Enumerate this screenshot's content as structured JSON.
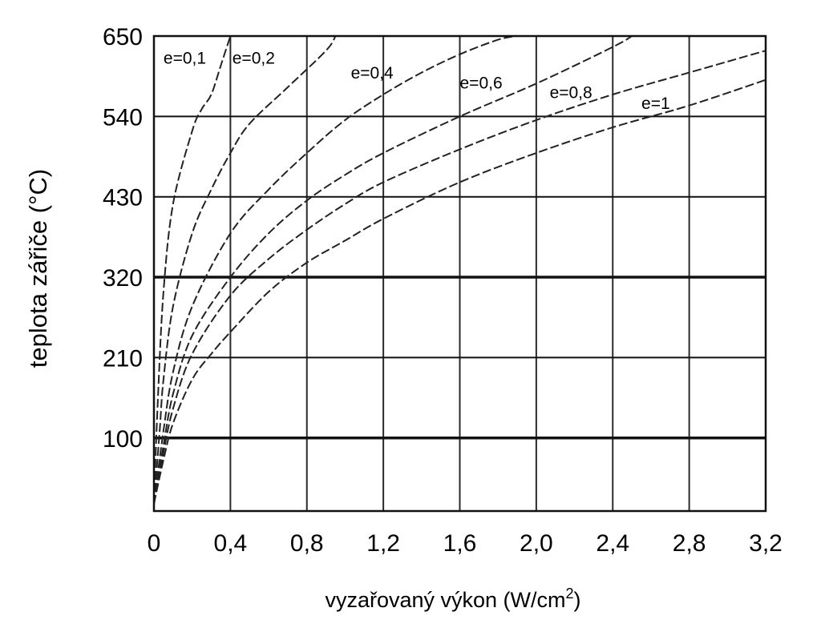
{
  "chart_data": {
    "type": "line",
    "xlabel": "vyzařovaný výkon (W/cm",
    "xlabel_superscript": "2",
    "xlabel_suffix": ")",
    "ylabel": "teplota zářiče (°C)",
    "xlim": [
      0,
      3.2
    ],
    "ylim": [
      0,
      650
    ],
    "x_ticks": [
      0,
      0.4,
      0.8,
      1.2,
      1.6,
      2.0,
      2.4,
      2.8,
      3.2
    ],
    "x_tick_labels": [
      "0",
      "0,4",
      "0,8",
      "1,2",
      "1,6",
      "2,0",
      "2,4",
      "2,8",
      "3,2"
    ],
    "y_ticks": [
      100,
      210,
      320,
      430,
      540,
      650
    ],
    "y_tick_labels": [
      "100",
      "210",
      "320",
      "430",
      "540",
      "650"
    ],
    "grid": true,
    "series": [
      {
        "name": "e=0,1",
        "x": [
          0,
          0.02,
          0.05,
          0.1,
          0.2,
          0.25,
          0.3,
          0.35,
          0.4
        ],
        "y": [
          10,
          150,
          300,
          420,
          520,
          550,
          570,
          610,
          650
        ]
      },
      {
        "name": "e=0,2",
        "x": [
          0,
          0.03,
          0.05,
          0.1,
          0.2,
          0.3,
          0.4,
          0.5,
          0.7,
          0.9,
          0.95
        ],
        "y": [
          10,
          110,
          180,
          280,
          380,
          440,
          490,
          530,
          580,
          630,
          650
        ]
      },
      {
        "name": "e=0,4",
        "x": [
          0,
          0.05,
          0.1,
          0.2,
          0.4,
          0.6,
          0.8,
          1.0,
          1.2,
          1.4,
          1.6,
          1.8,
          1.9
        ],
        "y": [
          10,
          110,
          190,
          280,
          380,
          440,
          490,
          535,
          570,
          600,
          625,
          645,
          650
        ]
      },
      {
        "name": "e=0,6",
        "x": [
          0,
          0.05,
          0.1,
          0.2,
          0.4,
          0.6,
          0.8,
          1.0,
          1.2,
          1.6,
          2.0,
          2.4,
          2.5
        ],
        "y": [
          10,
          90,
          160,
          240,
          320,
          380,
          425,
          460,
          490,
          540,
          585,
          635,
          650
        ]
      },
      {
        "name": "e=0,8",
        "x": [
          0,
          0.05,
          0.1,
          0.2,
          0.4,
          0.6,
          0.8,
          1.0,
          1.2,
          1.6,
          2.0,
          2.4,
          2.8,
          3.2
        ],
        "y": [
          10,
          80,
          140,
          215,
          295,
          345,
          385,
          420,
          450,
          495,
          535,
          570,
          600,
          630
        ]
      },
      {
        "name": "e=1",
        "x": [
          0,
          0.05,
          0.1,
          0.2,
          0.3,
          0.4,
          0.6,
          0.8,
          1.0,
          1.2,
          1.6,
          2.0,
          2.4,
          2.8,
          3.2
        ],
        "y": [
          10,
          70,
          120,
          180,
          215,
          245,
          300,
          340,
          370,
          400,
          450,
          490,
          525,
          555,
          590
        ]
      }
    ],
    "labels": [
      {
        "text": "e=0,1",
        "x": 0.05,
        "y": 612
      },
      {
        "text": "e=0,2",
        "x": 0.41,
        "y": 612
      },
      {
        "text": "e=0,4",
        "x": 1.03,
        "y": 592
      },
      {
        "text": "e=0,6",
        "x": 1.6,
        "y": 578
      },
      {
        "text": "e=0,8",
        "x": 2.07,
        "y": 565
      },
      {
        "text": "e=1",
        "x": 2.55,
        "y": 550
      }
    ]
  }
}
